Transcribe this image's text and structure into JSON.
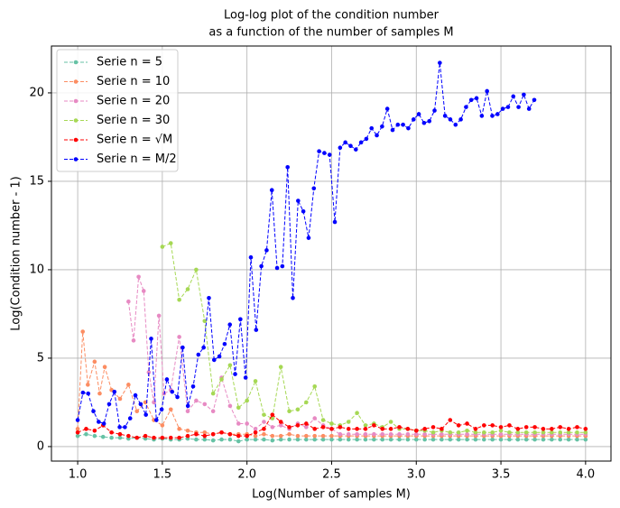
{
  "chart_data": {
    "type": "line",
    "title": [
      "Log-log plot of the condition number",
      "as a function of the number of samples M"
    ],
    "x_label": "Log(Number of samples M)",
    "y_label": "Log(Condition number - 1)",
    "xlim": [
      0.845,
      4.15
    ],
    "ylim": [
      -0.82,
      22.65
    ],
    "xticks": [
      {
        "value": 1,
        "label": "1.0"
      },
      {
        "value": 1.5,
        "label": "1.5"
      },
      {
        "value": 2,
        "label": "2.0"
      },
      {
        "value": 2.5,
        "label": "2.5"
      },
      {
        "value": 3,
        "label": "3.0"
      },
      {
        "value": 3.5,
        "label": "3.5"
      },
      {
        "value": 4,
        "label": "4.0"
      }
    ],
    "yticks": [
      0,
      5,
      10,
      15,
      20
    ],
    "grid": true,
    "legend": "upper-left",
    "series": [
      {
        "name": "Serie n = 5",
        "color": "#66c2a5",
        "x": [
          1.0,
          1.05,
          1.1,
          1.15,
          1.2,
          1.25,
          1.3,
          1.35,
          1.4,
          1.45,
          1.5,
          1.55,
          1.6,
          1.65,
          1.7,
          1.75,
          1.8,
          1.85,
          1.9,
          1.95,
          2.0,
          2.05,
          2.1,
          2.15,
          2.2,
          2.25,
          2.3,
          2.35,
          2.4,
          2.45,
          2.5,
          2.55,
          2.6,
          2.65,
          2.7,
          2.75,
          2.8,
          2.85,
          2.9,
          2.95,
          3.0,
          3.05,
          3.1,
          3.15,
          3.2,
          3.25,
          3.3,
          3.35,
          3.4,
          3.45,
          3.5,
          3.55,
          3.6,
          3.65,
          3.7,
          3.75,
          3.8,
          3.85,
          3.9,
          3.95,
          4.0
        ],
        "values": [
          0.6,
          0.7,
          0.6,
          0.55,
          0.5,
          0.5,
          0.45,
          0.5,
          0.45,
          0.4,
          0.45,
          0.4,
          0.4,
          0.45,
          0.4,
          0.4,
          0.35,
          0.4,
          0.4,
          0.3,
          0.4,
          0.4,
          0.4,
          0.35,
          0.4,
          0.4,
          0.4,
          0.4,
          0.4,
          0.4,
          0.4,
          0.4,
          0.4,
          0.4,
          0.4,
          0.4,
          0.4,
          0.4,
          0.4,
          0.4,
          0.4,
          0.4,
          0.4,
          0.4,
          0.4,
          0.4,
          0.4,
          0.4,
          0.4,
          0.4,
          0.4,
          0.4,
          0.4,
          0.4,
          0.4,
          0.4,
          0.4,
          0.4,
          0.4,
          0.4,
          0.4
        ]
      },
      {
        "name": "Serie n = 10",
        "color": "#fc8d62",
        "x": [
          1.0,
          1.03,
          1.06,
          1.1,
          1.13,
          1.16,
          1.2,
          1.25,
          1.3,
          1.35,
          1.4,
          1.45,
          1.5,
          1.55,
          1.6,
          1.65,
          1.7,
          1.75,
          1.8,
          1.85,
          1.9,
          1.95,
          2.0,
          2.05,
          2.1,
          2.15,
          2.2,
          2.25,
          2.3,
          2.35,
          2.4,
          2.45,
          2.5,
          2.55,
          2.6,
          2.65,
          2.7,
          2.75,
          2.8,
          2.85,
          2.9,
          2.95,
          3.0,
          3.05,
          3.1,
          3.15,
          3.2,
          3.25,
          3.3,
          3.35,
          3.4,
          3.45,
          3.5,
          3.55,
          3.6,
          3.65,
          3.7,
          3.75,
          3.8,
          3.85,
          3.9,
          3.95,
          4.0
        ],
        "values": [
          1.0,
          6.5,
          3.5,
          4.8,
          3.0,
          4.5,
          3.2,
          2.7,
          3.5,
          2.0,
          2.5,
          1.5,
          1.2,
          2.1,
          1.0,
          0.9,
          0.8,
          0.8,
          0.7,
          0.8,
          0.7,
          0.7,
          0.7,
          0.6,
          0.7,
          0.6,
          0.6,
          0.7,
          0.6,
          0.6,
          0.6,
          0.6,
          0.6,
          0.6,
          0.6,
          0.6,
          0.6,
          0.6,
          0.6,
          0.6,
          0.6,
          0.6,
          0.6,
          0.6,
          0.6,
          0.6,
          0.6,
          0.6,
          0.6,
          0.6,
          0.6,
          0.6,
          0.6,
          0.6,
          0.6,
          0.6,
          0.6,
          0.6,
          0.6,
          0.6,
          0.6,
          0.6,
          0.6
        ]
      },
      {
        "name": "Serie n = 20",
        "color": "#e78ac3",
        "x": [
          1.3,
          1.33,
          1.36,
          1.39,
          1.42,
          1.45,
          1.48,
          1.51,
          1.55,
          1.6,
          1.65,
          1.7,
          1.75,
          1.8,
          1.85,
          1.9,
          1.95,
          2.0,
          2.05,
          2.1,
          2.15,
          2.2,
          2.25,
          2.3,
          2.35,
          2.4,
          2.45,
          2.5,
          2.55,
          2.6,
          2.65,
          2.7,
          2.75,
          2.8,
          2.85,
          2.9,
          2.95,
          3.0,
          3.05,
          3.1,
          3.15,
          3.2,
          3.25,
          3.3,
          3.35,
          3.4,
          3.45,
          3.5,
          3.55,
          3.6,
          3.65,
          3.7,
          3.75,
          3.8,
          3.85,
          3.9,
          3.95,
          4.0
        ],
        "values": [
          8.2,
          6.0,
          9.6,
          8.8,
          4.2,
          2.5,
          7.4,
          3.0,
          3.2,
          6.2,
          2.0,
          2.6,
          2.4,
          2.0,
          3.9,
          2.3,
          1.3,
          1.3,
          1.0,
          1.4,
          1.1,
          1.2,
          1.0,
          1.3,
          1.1,
          1.6,
          1.2,
          1.0,
          0.7,
          0.7,
          0.7,
          0.7,
          0.7,
          0.7,
          0.7,
          0.7,
          0.7,
          0.7,
          0.7,
          0.7,
          0.7,
          0.7,
          0.7,
          0.7,
          0.7,
          0.7,
          0.7,
          0.7,
          0.7,
          0.7,
          0.7,
          0.7,
          0.7,
          0.7,
          0.7,
          0.7,
          0.7,
          0.7
        ]
      },
      {
        "name": "Serie n = 30",
        "color": "#a6d854",
        "x": [
          1.5,
          1.55,
          1.6,
          1.65,
          1.7,
          1.75,
          1.8,
          1.85,
          1.9,
          1.95,
          2.0,
          2.05,
          2.1,
          2.15,
          2.2,
          2.25,
          2.3,
          2.35,
          2.4,
          2.45,
          2.5,
          2.55,
          2.6,
          2.65,
          2.7,
          2.75,
          2.8,
          2.85,
          2.9,
          2.95,
          3.0,
          3.05,
          3.1,
          3.15,
          3.2,
          3.25,
          3.3,
          3.35,
          3.4,
          3.45,
          3.5,
          3.55,
          3.6,
          3.65,
          3.7,
          3.75,
          3.8,
          3.85,
          3.9,
          3.95,
          4.0
        ],
        "values": [
          11.3,
          11.5,
          8.3,
          8.9,
          10.0,
          7.1,
          3.0,
          3.8,
          4.6,
          2.2,
          2.6,
          3.7,
          1.8,
          1.6,
          4.5,
          2.0,
          2.1,
          2.5,
          3.4,
          1.5,
          1.3,
          1.2,
          1.4,
          1.9,
          1.2,
          1.3,
          1.1,
          1.4,
          1.0,
          1.0,
          0.9,
          0.9,
          0.8,
          0.9,
          0.8,
          0.8,
          0.9,
          0.8,
          0.8,
          0.8,
          0.9,
          0.8,
          0.8,
          0.8,
          0.8,
          0.8,
          0.8,
          0.8,
          0.8,
          0.8,
          0.8
        ]
      },
      {
        "name": "Serie n = √M",
        "color": "#ff0000",
        "x": [
          1.0,
          1.05,
          1.1,
          1.15,
          1.2,
          1.25,
          1.3,
          1.35,
          1.4,
          1.45,
          1.5,
          1.55,
          1.6,
          1.65,
          1.7,
          1.75,
          1.8,
          1.85,
          1.9,
          1.95,
          2.0,
          2.05,
          2.1,
          2.15,
          2.2,
          2.25,
          2.3,
          2.35,
          2.4,
          2.45,
          2.5,
          2.55,
          2.6,
          2.65,
          2.7,
          2.75,
          2.8,
          2.85,
          2.9,
          2.95,
          3.0,
          3.05,
          3.1,
          3.15,
          3.2,
          3.25,
          3.3,
          3.35,
          3.4,
          3.45,
          3.5,
          3.55,
          3.6,
          3.65,
          3.7,
          3.75,
          3.8,
          3.85,
          3.9,
          3.95,
          4.0
        ],
        "values": [
          0.8,
          1.0,
          0.9,
          1.2,
          0.8,
          0.7,
          0.6,
          0.5,
          0.6,
          0.5,
          0.5,
          0.5,
          0.5,
          0.6,
          0.7,
          0.6,
          0.7,
          0.8,
          0.7,
          0.6,
          0.6,
          0.8,
          1.0,
          1.8,
          1.4,
          1.1,
          1.2,
          1.3,
          1.0,
          1.1,
          1.0,
          1.1,
          1.0,
          1.0,
          1.0,
          1.2,
          1.0,
          1.0,
          1.1,
          1.0,
          0.9,
          1.0,
          1.1,
          1.0,
          1.5,
          1.2,
          1.3,
          1.0,
          1.2,
          1.2,
          1.1,
          1.2,
          1.0,
          1.1,
          1.1,
          1.0,
          1.0,
          1.1,
          1.0,
          1.1,
          1.0
        ]
      },
      {
        "name": "Serie n = M/2",
        "color": "#0000ff",
        "x": [
          1.0,
          1.031,
          1.062,
          1.093,
          1.124,
          1.155,
          1.186,
          1.217,
          1.248,
          1.279,
          1.31,
          1.341,
          1.372,
          1.403,
          1.434,
          1.465,
          1.496,
          1.527,
          1.558,
          1.589,
          1.62,
          1.651,
          1.682,
          1.713,
          1.744,
          1.775,
          1.806,
          1.837,
          1.868,
          1.899,
          1.93,
          1.961,
          1.992,
          2.023,
          2.054,
          2.085,
          2.116,
          2.147,
          2.178,
          2.209,
          2.24,
          2.271,
          2.302,
          2.333,
          2.364,
          2.395,
          2.426,
          2.457,
          2.488,
          2.519,
          2.55,
          2.581,
          2.612,
          2.643,
          2.674,
          2.705,
          2.736,
          2.767,
          2.798,
          2.829,
          2.86,
          2.891,
          2.922,
          2.953,
          2.984,
          3.015,
          3.046,
          3.077,
          3.108,
          3.139,
          3.17,
          3.201,
          3.232,
          3.263,
          3.294,
          3.325,
          3.356,
          3.387,
          3.418,
          3.449,
          3.48,
          3.511,
          3.542,
          3.573,
          3.604,
          3.635,
          3.666,
          3.697
        ],
        "values": [
          1.5,
          3.05,
          3.0,
          2.0,
          1.4,
          1.3,
          2.4,
          3.1,
          1.1,
          1.1,
          1.6,
          2.9,
          2.4,
          1.8,
          6.1,
          1.5,
          2.1,
          3.8,
          3.1,
          2.8,
          5.6,
          2.3,
          3.4,
          5.2,
          5.6,
          8.4,
          4.9,
          5.1,
          5.8,
          6.9,
          4.1,
          7.2,
          3.9,
          10.7,
          6.6,
          10.2,
          11.1,
          14.5,
          10.1,
          10.2,
          15.8,
          8.4,
          13.9,
          13.3,
          11.8,
          14.6,
          16.7,
          16.6,
          16.5,
          12.7,
          16.9,
          17.2,
          17.0,
          16.8,
          17.2,
          17.4,
          18.0,
          17.6,
          18.1,
          19.1,
          17.9,
          18.2,
          18.2,
          18.0,
          18.5,
          18.8,
          18.3,
          18.4,
          19.0,
          21.7,
          18.7,
          18.5,
          18.2,
          18.5,
          19.2,
          19.6,
          19.7,
          18.7,
          20.1,
          18.7,
          18.8,
          19.1,
          19.2,
          19.8,
          19.2,
          19.9,
          19.1,
          19.6
        ]
      }
    ]
  }
}
